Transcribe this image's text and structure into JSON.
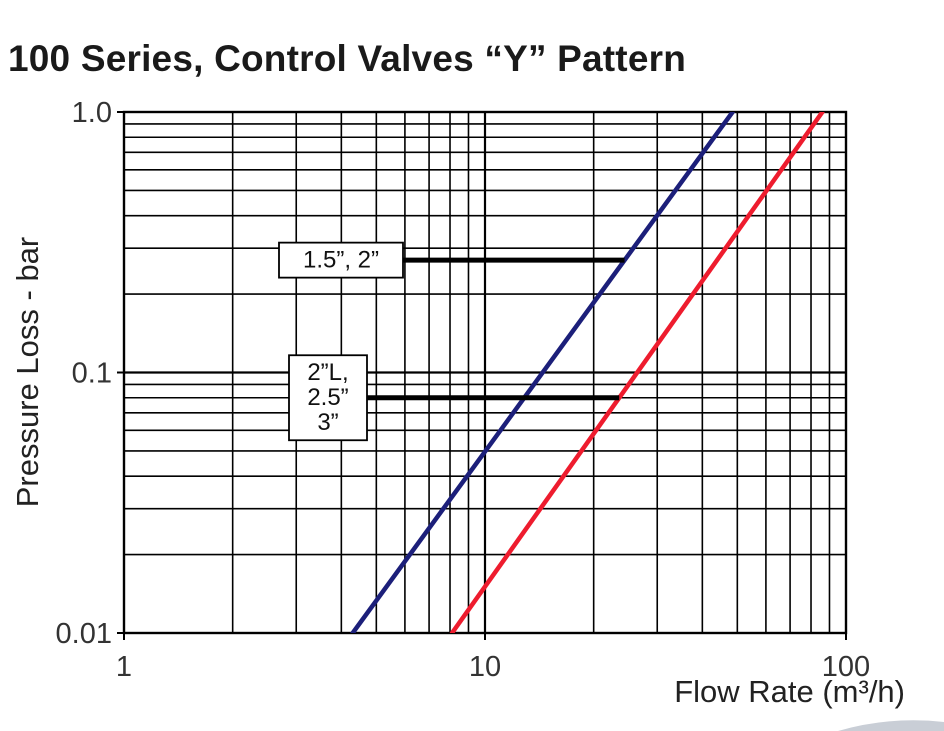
{
  "title": "100 Series, Control Valves “Y” Pattern",
  "chart_data": {
    "type": "line",
    "xlabel": "Flow Rate (m³/h)",
    "ylabel": "Pressure Loss - bar",
    "xscale": "log",
    "yscale": "log",
    "xlim": [
      1,
      100
    ],
    "ylim": [
      0.01,
      1.0
    ],
    "grid": true,
    "x_ticks": [
      {
        "value": 1,
        "label": "1"
      },
      {
        "value": 10,
        "label": "10"
      },
      {
        "value": 100,
        "label": "100"
      }
    ],
    "y_ticks": [
      {
        "value": 0.01,
        "label": "0.01"
      },
      {
        "value": 0.1,
        "label": "0.1"
      },
      {
        "value": 1.0,
        "label": "1.0"
      }
    ],
    "series": [
      {
        "color": "#1c1f7a",
        "x": [
          4.3,
          48.5
        ],
        "y": [
          0.01,
          1.0
        ]
      },
      {
        "color": "#ee1c2e",
        "x": [
          8.1,
          86.0
        ],
        "y": [
          0.01,
          1.0
        ]
      }
    ],
    "annotations": [
      {
        "lines": [
          "1.5”, 2”"
        ],
        "series_index": 0,
        "y": 0.27
      },
      {
        "lines": [
          "2”L,",
          "2.5”",
          "3”"
        ],
        "series_index": 1,
        "y": 0.08
      }
    ]
  }
}
